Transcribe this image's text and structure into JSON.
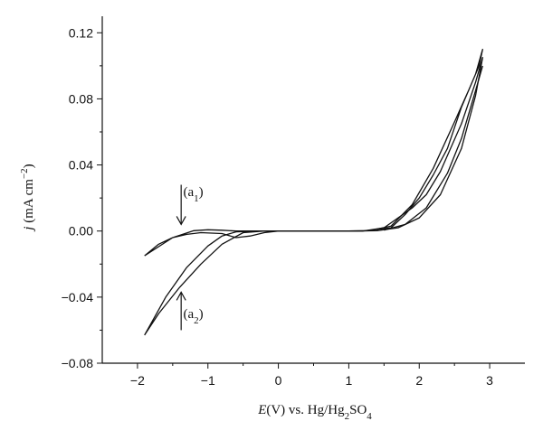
{
  "chart_data": {
    "type": "line",
    "title": "",
    "xlabel": {
      "italic": "E",
      "text": "(V) vs. Hg/Hg",
      "sub1": "2",
      "mid": "SO",
      "sub2": "4"
    },
    "ylabel": {
      "italic": "j",
      "text": " (mA cm",
      "sup": "−2",
      "close": ")"
    },
    "xlim": [
      -2.5,
      3.5
    ],
    "ylim": [
      -0.08,
      0.13
    ],
    "x_ticks": [
      -2,
      -1,
      0,
      1,
      2,
      3
    ],
    "x_tick_labels": [
      "−2",
      "−1",
      "0",
      "1",
      "2",
      "3"
    ],
    "y_ticks": [
      -0.08,
      -0.04,
      0.0,
      0.04,
      0.08,
      0.12
    ],
    "y_tick_labels": [
      "−0.08",
      "−0.04",
      "0.00",
      "0.04",
      "0.08",
      "0.12"
    ],
    "grid": false,
    "legend": "none",
    "line_color": "#111111",
    "annotations": [
      {
        "label": "(a",
        "sub": "1",
        "close": ")",
        "x": -1.35,
        "y": 0.024,
        "arrow": "down",
        "arrow_x": -1.38,
        "arrow_from": 0.028,
        "arrow_to": 0.004
      },
      {
        "label": "(a",
        "sub": "2",
        "close": ")",
        "x": -1.35,
        "y": -0.05,
        "arrow": "up",
        "arrow_x": -1.38,
        "arrow_from": -0.06,
        "arrow_to": -0.037
      }
    ],
    "series": [
      {
        "values": [
          [
            -1.9,
            -0.015
          ],
          [
            -1.7,
            -0.008
          ],
          [
            -1.5,
            -0.004
          ],
          [
            -1.3,
            -0.002
          ],
          [
            -1.1,
            -0.001
          ],
          [
            -0.8,
            -0.0015
          ],
          [
            -0.6,
            -0.004
          ],
          [
            -0.4,
            -0.003
          ],
          [
            -0.2,
            -0.001
          ],
          [
            0,
            0
          ],
          [
            1,
            0
          ],
          [
            1.3,
            0.0002
          ],
          [
            1.6,
            0.003
          ],
          [
            1.9,
            0.016
          ],
          [
            2.2,
            0.038
          ],
          [
            2.5,
            0.066
          ],
          [
            2.7,
            0.085
          ],
          [
            2.85,
            0.1
          ],
          [
            2.9,
            0.11
          ],
          [
            2.8,
            0.095
          ],
          [
            2.6,
            0.075
          ],
          [
            2.4,
            0.05
          ],
          [
            2.2,
            0.034
          ],
          [
            2.0,
            0.02
          ],
          [
            1.8,
            0.01
          ],
          [
            1.6,
            0.002
          ],
          [
            1.2,
            0.0
          ],
          [
            0,
            0.0
          ],
          [
            -0.6,
            0.0
          ],
          [
            -0.8,
            0.0005
          ],
          [
            -1.0,
            0.0008
          ],
          [
            -1.2,
            0.0002
          ],
          [
            -1.5,
            -0.004
          ],
          [
            -1.9,
            -0.015
          ]
        ]
      },
      {
        "values": [
          [
            -1.9,
            -0.063
          ],
          [
            -1.6,
            -0.04
          ],
          [
            -1.3,
            -0.022
          ],
          [
            -1.0,
            -0.009
          ],
          [
            -0.8,
            -0.003
          ],
          [
            -0.6,
            -0.0005
          ],
          [
            -0.3,
            0.0
          ],
          [
            1,
            0.0
          ],
          [
            1.4,
            0.0002
          ],
          [
            1.7,
            0.002
          ],
          [
            2.0,
            0.008
          ],
          [
            2.3,
            0.022
          ],
          [
            2.6,
            0.05
          ],
          [
            2.8,
            0.082
          ],
          [
            2.9,
            0.105
          ],
          [
            2.8,
            0.09
          ],
          [
            2.6,
            0.065
          ],
          [
            2.3,
            0.036
          ],
          [
            2.1,
            0.022
          ],
          [
            1.9,
            0.014
          ],
          [
            1.7,
            0.008
          ],
          [
            1.5,
            0.002
          ],
          [
            1.2,
            0.0
          ],
          [
            -0.2,
            0.0
          ],
          [
            -0.5,
            -0.001
          ],
          [
            -0.8,
            -0.008
          ],
          [
            -1.1,
            -0.02
          ],
          [
            -1.4,
            -0.034
          ],
          [
            -1.7,
            -0.05
          ],
          [
            -1.9,
            -0.063
          ]
        ]
      },
      {
        "values": [
          [
            1.5,
            0.0005
          ],
          [
            1.8,
            0.004
          ],
          [
            2.1,
            0.014
          ],
          [
            2.4,
            0.035
          ],
          [
            2.6,
            0.056
          ],
          [
            2.8,
            0.085
          ],
          [
            2.9,
            0.1
          ]
        ]
      }
    ]
  }
}
